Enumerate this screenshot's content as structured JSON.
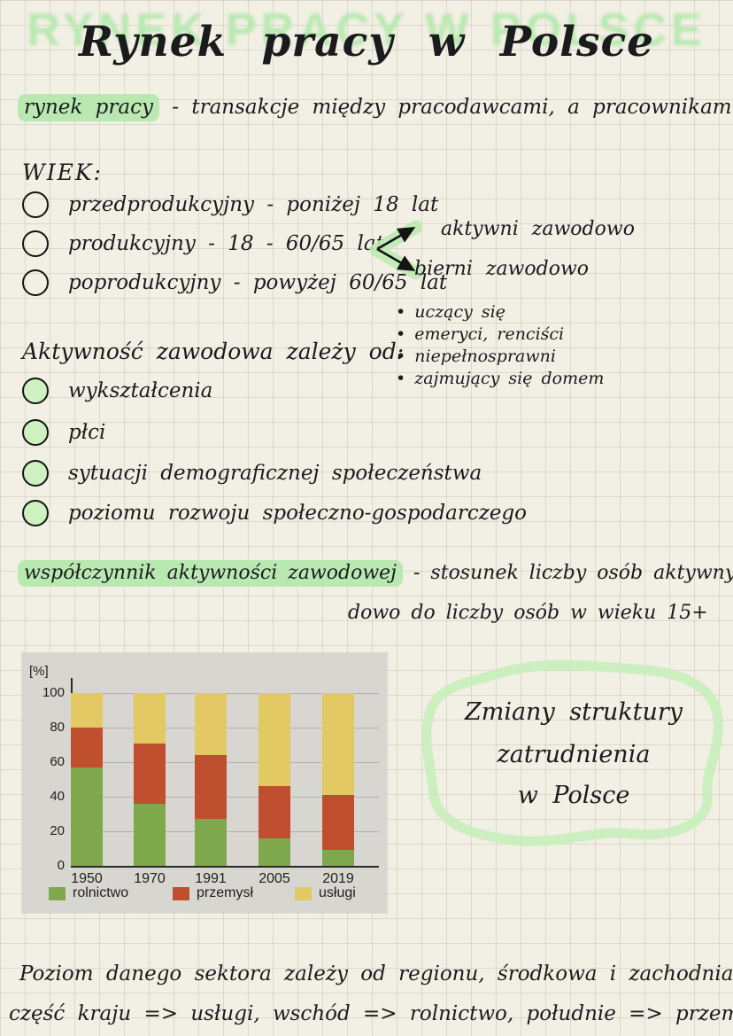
{
  "title": {
    "text": "Rynek pracy w Polsce",
    "bubble_text": "RYNEK PRACY W POLSCE"
  },
  "definition": {
    "highlight": "rynek pracy",
    "rest": " - transakcje między pracodawcami, a pracownikami"
  },
  "wiek": {
    "heading": "WIEK:",
    "items": [
      "przedprodukcyjny - poniżej 18 lat",
      "produkcyjny - 18 - 60/65 lat",
      "poprodukcyjny - powyżej 60/65 lat"
    ]
  },
  "activity_split": {
    "active": "aktywni zawodowo",
    "passive": "bierni zawodowo",
    "passive_examples": [
      "uczący się",
      "emeryci, renciści",
      "niepełnosprawni",
      "zajmujący się domem"
    ]
  },
  "aktywnosc": {
    "heading": "Aktywność zawodowa zależy od:",
    "items": [
      "wykształcenia",
      "płci",
      "sytuacji demograficznej społeczeństwa",
      "poziomu rozwoju społeczno-gospodarczego"
    ]
  },
  "wspolczynnik": {
    "highlight": "współczynnik aktywności zawodowej",
    "line1_rest": " - stosunek liczby osób aktywnych zawo -",
    "line2": "dowo do liczby osób w wieku 15+"
  },
  "chart_data": {
    "type": "bar",
    "stacked": true,
    "unit_label": "[%]",
    "categories": [
      "1950",
      "1970",
      "1991",
      "2005",
      "2019"
    ],
    "series": [
      {
        "name": "rolnictwo",
        "color": "#7fa84d",
        "values": [
          57,
          36,
          27,
          16,
          9
        ]
      },
      {
        "name": "przemysł",
        "color": "#bf4f2e",
        "values": [
          23,
          35,
          37,
          30,
          32
        ]
      },
      {
        "name": "usługi",
        "color": "#e2c964",
        "values": [
          20,
          29,
          36,
          54,
          59
        ]
      }
    ],
    "ylim": [
      0,
      100
    ],
    "yticks": [
      0,
      20,
      40,
      60,
      80,
      100
    ],
    "grid": true,
    "legend_position": "bottom"
  },
  "blob_note": {
    "lines": [
      "Zmiany struktury",
      "zatrudnienia",
      "w Polsce"
    ]
  },
  "footer": {
    "line1": "Poziom danego sektora zależy od regionu, środkowa i zachodnia",
    "line2": "część kraju => usługi, wschód => rolnictwo, południe => przemysł"
  },
  "colors": {
    "paper": "#f2efe4",
    "grid_line": "#dcd8c8",
    "ink": "#1b1b1e",
    "highlight_green": "#b9e9b1",
    "chart_background": "#d8d6d1",
    "rolnictwo_green": "#7fa84d",
    "przemysl_red": "#bf4f2e",
    "uslugi_yellow": "#e2c964"
  }
}
